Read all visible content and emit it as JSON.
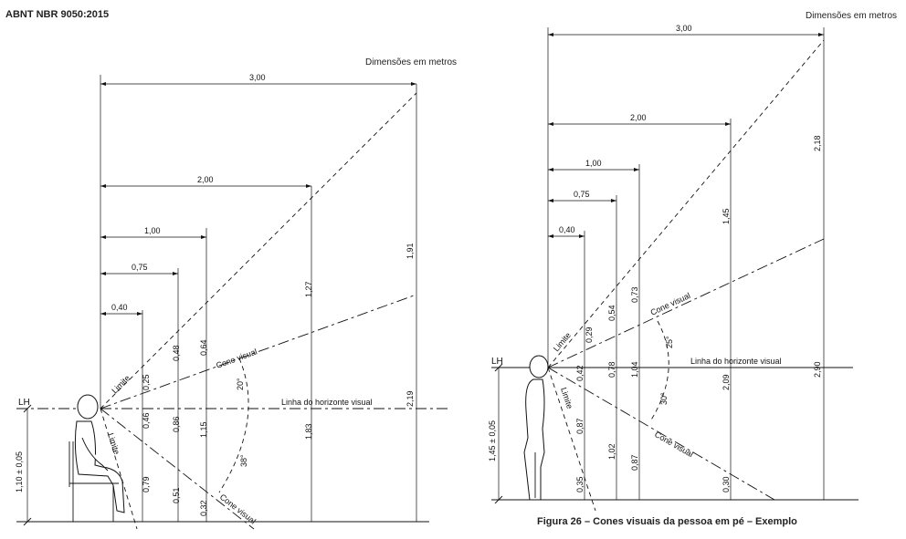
{
  "header": {
    "standard": "ABNT NBR 9050:2015"
  },
  "figure": {
    "caption": "Figura 26 – Cones visuais da pessoa em pé – Exemplo"
  },
  "seated": {
    "units_note": "Dimensões em metros",
    "lh_label": "LH",
    "eye_height": "1,10 ± 0,05",
    "horizon_label": "Linha do horizonte visual",
    "cone_upper_label": "Cone visual",
    "cone_lower_label": "Cone visual",
    "limit_upper_label": "Limite",
    "limit_lower_label": "Limite",
    "angle_up": "20°",
    "angle_down": "38°",
    "distances": [
      "0,40",
      "0,75",
      "1,00",
      "2,00",
      "3,00"
    ],
    "above_horizon": [
      "0,25",
      "0,48",
      "0,64",
      "1,27",
      "1,91"
    ],
    "below_horizon": [
      "0,46",
      "0,86",
      "1,15",
      "1,83",
      "2,19"
    ],
    "below_cone": [
      "0,79",
      "0,51",
      "0,32"
    ]
  },
  "standing": {
    "units_note": "Dimensões em metros",
    "lh_label": "LH",
    "eye_height": "1,45 ± 0,05",
    "horizon_label": "Linha do horizonte visual",
    "cone_upper_label": "Cone visual",
    "cone_lower_label": "Cone visual",
    "limit_upper_label": "Limite",
    "limit_lower_label": "Limite",
    "angle_up": "25°",
    "angle_down": "30°",
    "distances": [
      "0,40",
      "0,75",
      "1,00",
      "2,00",
      "3,00"
    ],
    "above_horizon": [
      "0,29",
      "0,54",
      "0,73",
      "1,45",
      "2,18"
    ],
    "below_horizon": [
      "0,42",
      "0,78",
      "1,04",
      "2,09",
      "2,90"
    ],
    "below_cone": [
      "0,87",
      "1,02",
      "0,87",
      "0,35",
      "0,30"
    ]
  }
}
